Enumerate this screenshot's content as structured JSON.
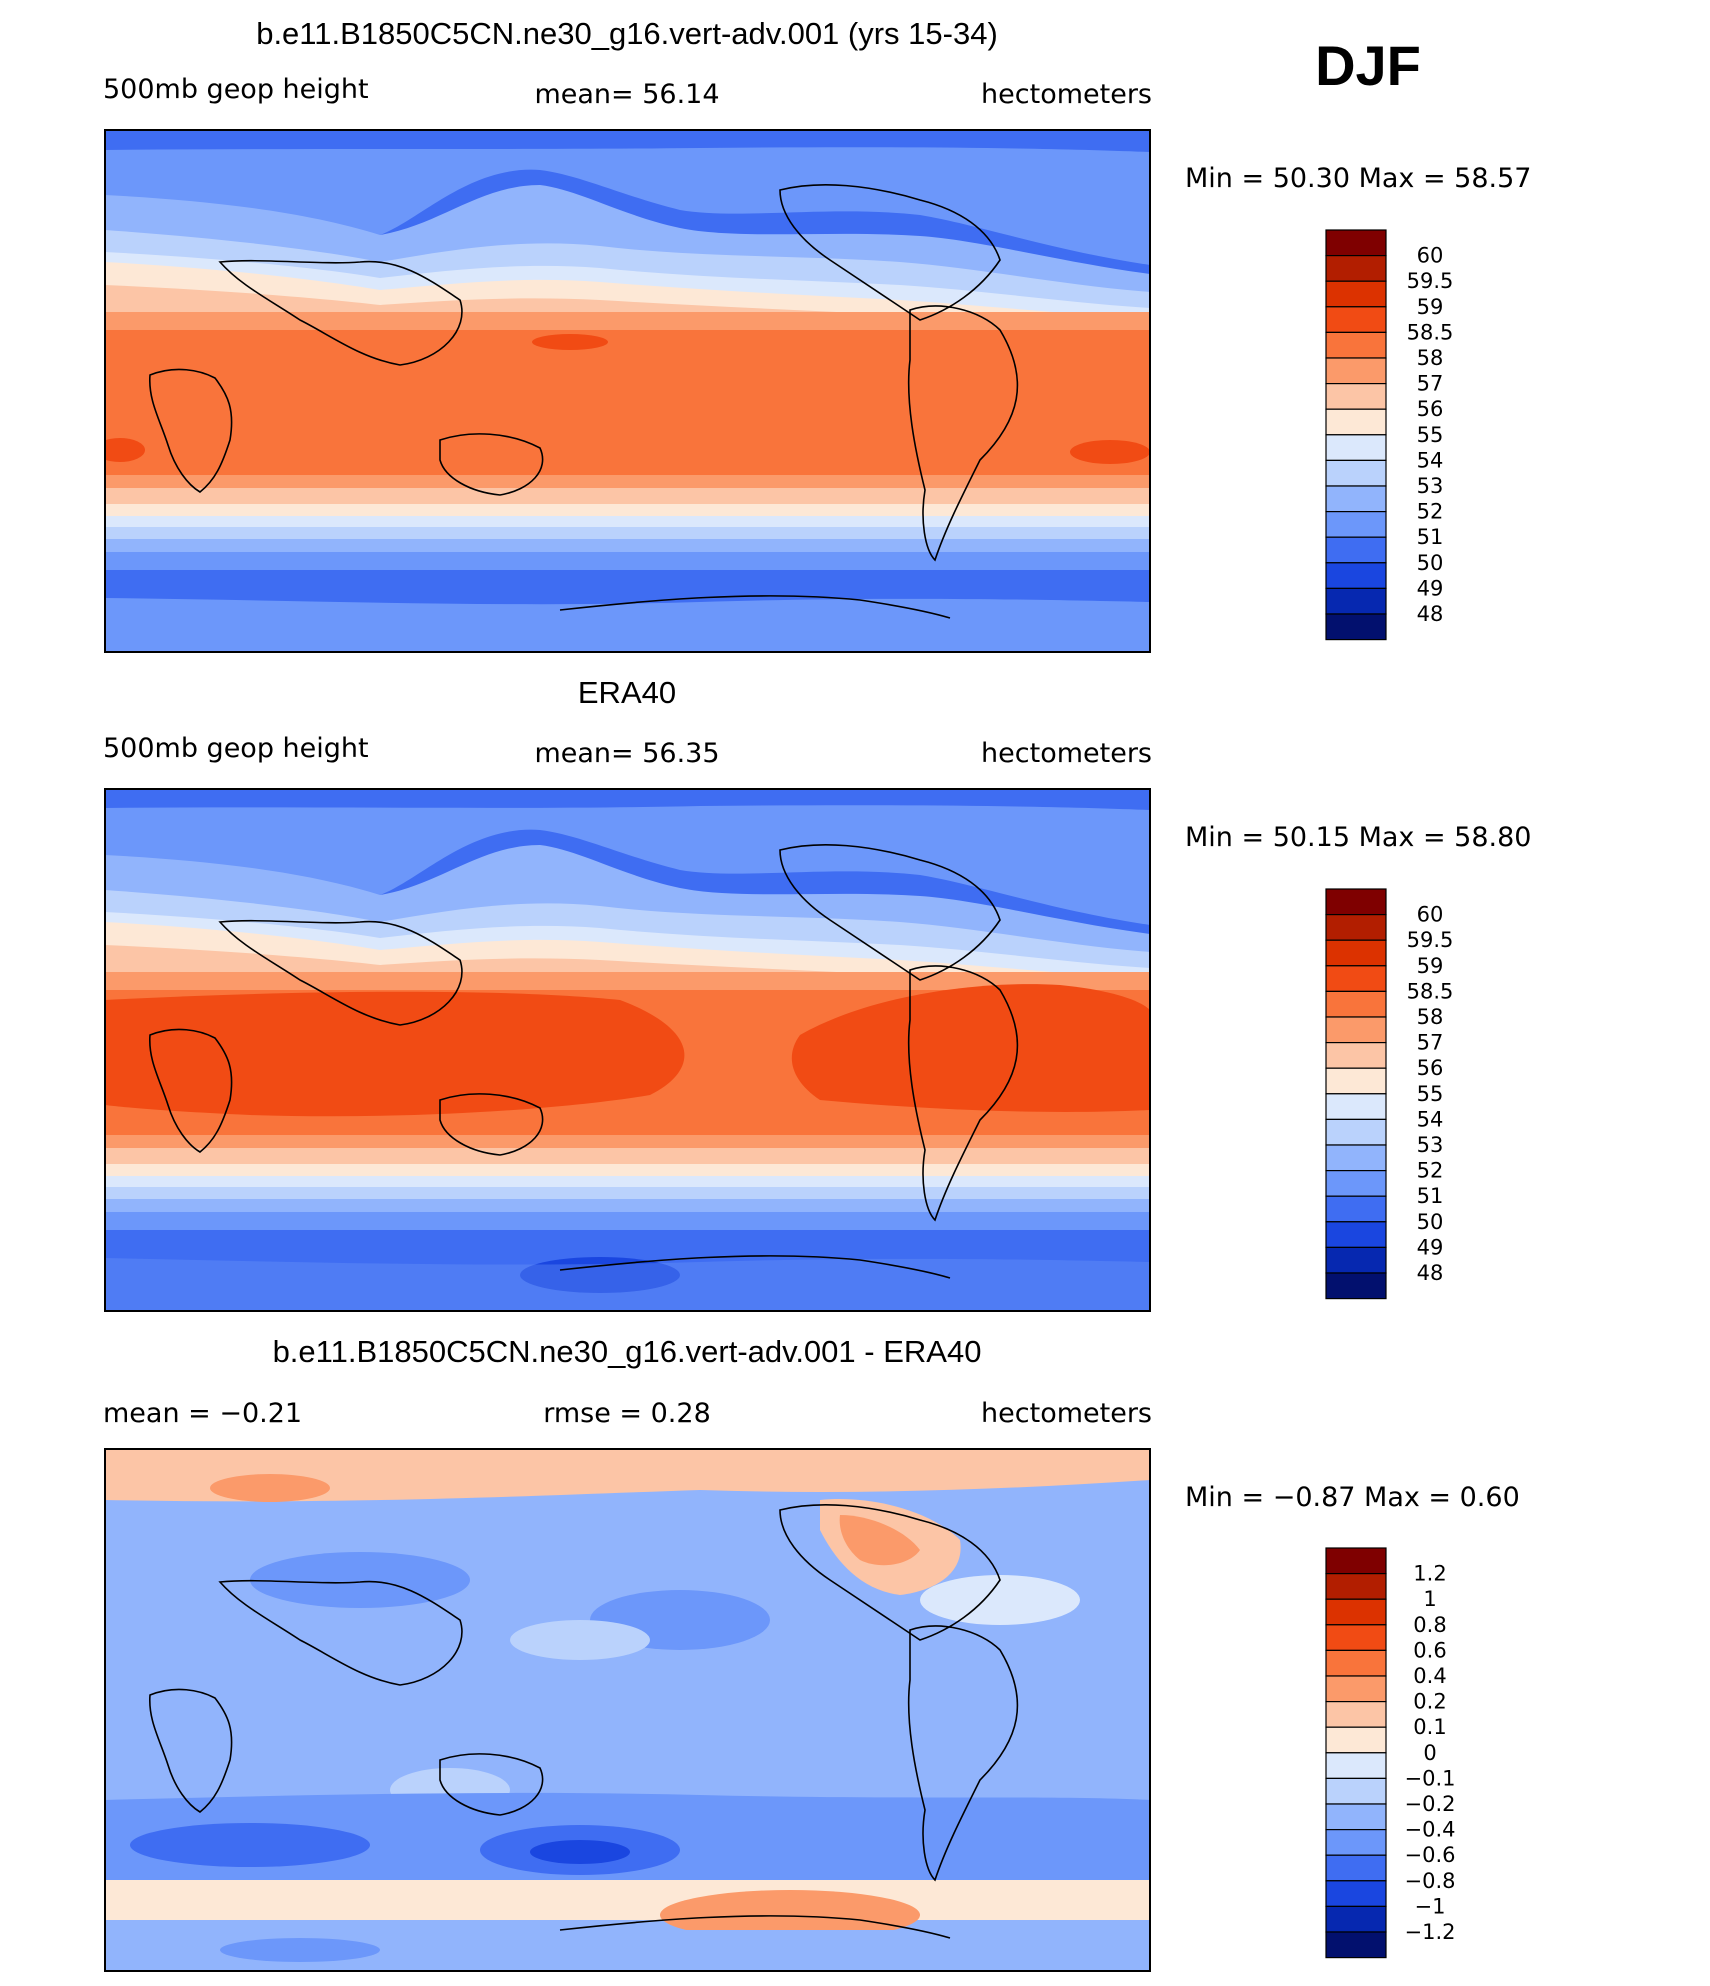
{
  "season": "DJF",
  "panels": [
    {
      "title": "b.e11.B1850C5CN.ne30_g16.vert-adv.001 (yrs 15-34)",
      "left_label": "500mb geop height",
      "center_label": "mean=   56.14",
      "right_label": "hectometers",
      "min_max": "Min =   50.30 Max =   58.57",
      "colorbar_labels": [
        "60",
        "59.5",
        "59",
        "58.5",
        "58",
        "57",
        "56",
        "55",
        "54",
        "53",
        "52",
        "51",
        "50",
        "49",
        "48"
      ],
      "colors": [
        "#7f0000",
        "#b21e00",
        "#dc3200",
        "#f14b14",
        "#f9743b",
        "#fb9a6a",
        "#fcc5a6",
        "#fde8d6",
        "#dbe8fc",
        "#bad2fc",
        "#91b4fc",
        "#6c97fa",
        "#3f6df2",
        "#1a46e0",
        "#0628b0",
        "#02106e"
      ]
    },
    {
      "title": "ERA40",
      "left_label": "500mb geop height",
      "center_label": "mean=   56.35",
      "right_label": "hectometers",
      "min_max": "Min =   50.15 Max =   58.80",
      "colorbar_labels": [
        "60",
        "59.5",
        "59",
        "58.5",
        "58",
        "57",
        "56",
        "55",
        "54",
        "53",
        "52",
        "51",
        "50",
        "49",
        "48"
      ],
      "colors": [
        "#7f0000",
        "#b21e00",
        "#dc3200",
        "#f14b14",
        "#f9743b",
        "#fb9a6a",
        "#fcc5a6",
        "#fde8d6",
        "#dbe8fc",
        "#bad2fc",
        "#91b4fc",
        "#6c97fa",
        "#3f6df2",
        "#1a46e0",
        "#0628b0",
        "#02106e"
      ]
    },
    {
      "title": "b.e11.B1850C5CN.ne30_g16.vert-adv.001 - ERA40",
      "left_label": "mean =   −0.21",
      "center_label": "rmse =    0.28",
      "right_label": "hectometers",
      "min_max": "Min =   −0.87 Max =    0.60",
      "colorbar_labels": [
        "1.2",
        "1",
        "0.8",
        "0.6",
        "0.4",
        "0.2",
        "0.1",
        "0",
        "−0.1",
        "−0.2",
        "−0.4",
        "−0.6",
        "−0.8",
        "−1",
        "−1.2"
      ],
      "colors": [
        "#7f0000",
        "#b21e00",
        "#dc3200",
        "#f14b14",
        "#f9743b",
        "#fb9a6a",
        "#fcc5a6",
        "#fde8d6",
        "#dbe8fc",
        "#bad2fc",
        "#91b4fc",
        "#6c97fa",
        "#3f6df2",
        "#1a46e0",
        "#0628b0",
        "#02106e"
      ]
    }
  ]
}
